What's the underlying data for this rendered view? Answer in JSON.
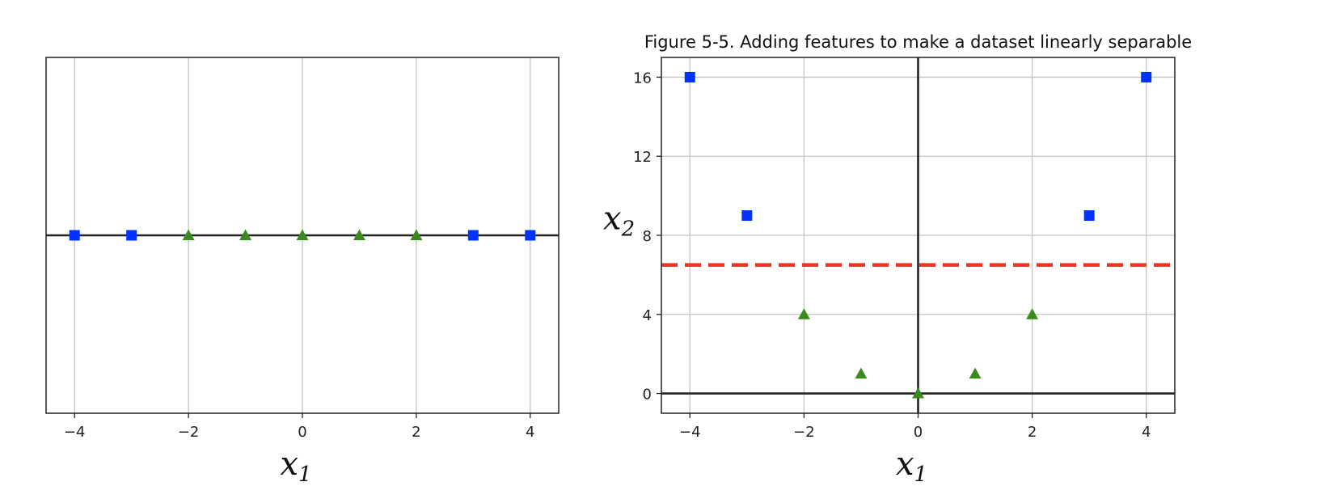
{
  "chart_data": [
    {
      "type": "scatter",
      "title": "",
      "xlabel": {
        "base": "x",
        "sub": "1"
      },
      "ylabel": null,
      "xlim": [
        -4.5,
        4.5
      ],
      "ylim": [
        -0.2,
        0.2
      ],
      "xticks": [
        -4,
        -2,
        0,
        2,
        4
      ],
      "yticks": [],
      "grid": true,
      "axis_lines": {
        "horizontal_at_y": 0
      },
      "series": [
        {
          "marker": "square",
          "color": "#0033ff",
          "points": [
            [
              -4,
              0
            ],
            [
              -3,
              0
            ],
            [
              3,
              0
            ],
            [
              4,
              0
            ]
          ]
        },
        {
          "marker": "triangle",
          "color": "#3a8a1f",
          "points": [
            [
              -2,
              0
            ],
            [
              -1,
              0
            ],
            [
              0,
              0
            ],
            [
              1,
              0
            ],
            [
              2,
              0
            ]
          ]
        }
      ]
    },
    {
      "type": "scatter",
      "title": "Figure 5-5. Adding features to make a dataset linearly separable",
      "xlabel": {
        "base": "x",
        "sub": "1"
      },
      "ylabel": {
        "base": "x",
        "sub": "2"
      },
      "xlim": [
        -4.5,
        4.5
      ],
      "ylim": [
        -1,
        17
      ],
      "xticks": [
        -4,
        -2,
        0,
        2,
        4
      ],
      "yticks": [
        0,
        4,
        8,
        12,
        16
      ],
      "grid": true,
      "axis_lines": {
        "horizontal_at_y": 0,
        "vertical_at_x": 0
      },
      "reference_line": {
        "style": "dashed",
        "color": "#ee3322",
        "y": 6.5
      },
      "series": [
        {
          "marker": "square",
          "color": "#0033ff",
          "points": [
            [
              -4,
              16
            ],
            [
              -3,
              9
            ],
            [
              3,
              9
            ],
            [
              4,
              16
            ]
          ]
        },
        {
          "marker": "triangle",
          "color": "#3a8a1f",
          "points": [
            [
              -2,
              4
            ],
            [
              -1,
              1
            ],
            [
              0,
              0
            ],
            [
              1,
              1
            ],
            [
              2,
              4
            ]
          ]
        }
      ]
    }
  ]
}
